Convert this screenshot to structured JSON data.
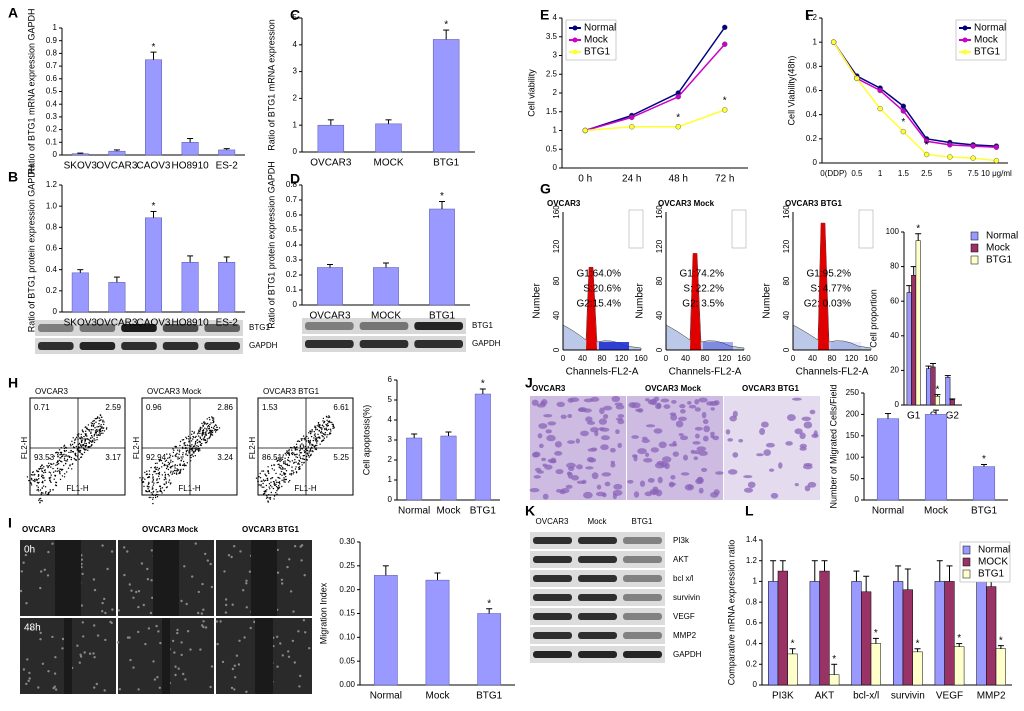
{
  "chart_data": [
    {
      "type": "bar",
      "categories": [
        "SKOV3",
        "OVCAR3",
        "CAOV3",
        "HO8910",
        "ES-2"
      ],
      "values": [
        0.01,
        0.03,
        0.75,
        0.1,
        0.04
      ],
      "errors": [
        0.005,
        0.01,
        0.06,
        0.03,
        0.01
      ],
      "color": "#9999ff",
      "ylabel": "Ratio of BTG1 mRNA expression GAPDH",
      "ylim": [
        0,
        1
      ],
      "yticks": [
        0,
        0.1,
        0.2,
        0.3,
        0.4,
        0.5,
        0.6,
        0.7,
        0.8,
        0.9,
        1
      ],
      "annotations": [
        {
          "text": "*",
          "index": 2
        }
      ]
    },
    {
      "type": "bar",
      "categories": [
        "SKOV3",
        "OVCAR3",
        "CAOV3",
        "HO8910",
        "ES-2"
      ],
      "values": [
        0.37,
        0.28,
        0.89,
        0.47,
        0.47
      ],
      "errors": [
        0.03,
        0.05,
        0.06,
        0.06,
        0.05
      ],
      "color": "#9999ff",
      "ylabel": "Ratio of BTG1 protein expression GAPDH",
      "ylim": [
        0,
        1.2
      ],
      "yticks": [
        0,
        0.2,
        0.4,
        0.6,
        0.8,
        {
          "value": 1,
          "label": "1.0"
        },
        1.2
      ],
      "annotations": [
        {
          "text": "*",
          "index": 2
        }
      ]
    },
    {
      "type": "bar",
      "categories": [
        "OVCAR3",
        "MOCK",
        "BTG1"
      ],
      "values": [
        1,
        1.05,
        4.2
      ],
      "errors": [
        0.2,
        0.15,
        0.35
      ],
      "color": "#9999ff",
      "ylabel": "Ratio of BTG1 mRNA expression",
      "ylim": [
        0,
        5
      ],
      "yticks": [
        0,
        1,
        2,
        3,
        4,
        5
      ],
      "annotations": [
        {
          "text": "*",
          "index": 2
        }
      ]
    },
    {
      "type": "bar",
      "categories": [
        "OVCAR3",
        "MOCK",
        "BTG1"
      ],
      "values": [
        0.25,
        0.25,
        0.64
      ],
      "errors": [
        0.02,
        0.03,
        0.05
      ],
      "color": "#9999ff",
      "ylabel": "Ratio of BTG1 protein expression GAPDH",
      "ylim": [
        0,
        0.8
      ],
      "yticks": [
        0,
        0.1,
        0.2,
        0.3,
        0.4,
        0.5,
        0.6,
        0.7,
        0.8
      ],
      "annotations": [
        {
          "text": "*",
          "index": 2
        }
      ]
    },
    {
      "type": "line",
      "categories": [
        "0 h",
        "24 h",
        "48 h",
        "72 h"
      ],
      "series": [
        {
          "name": "Normal",
          "color": "#000080",
          "values": [
            1,
            1.4,
            2.0,
            3.75
          ]
        },
        {
          "name": "Mock",
          "color": "#cc00cc",
          "values": [
            1,
            1.35,
            1.9,
            3.3
          ]
        },
        {
          "name": "BTG1",
          "color": "#ffff33",
          "values": [
            1,
            1.1,
            1.1,
            1.55
          ]
        }
      ],
      "ylabel": "Cell viability",
      "ylim": [
        0,
        4
      ],
      "yticks": [
        0,
        0.5,
        1,
        1.5,
        2,
        2.5,
        3,
        3.5,
        4
      ],
      "legend": "upper left",
      "annotations": [
        {
          "text": "*",
          "index": 2,
          "series": 2
        },
        {
          "text": "*",
          "index": 3,
          "series": 2
        }
      ]
    },
    {
      "type": "line",
      "categories": [
        "0(DDP)",
        "0.5",
        "1",
        "1.5",
        "2.5",
        "5",
        "7.5",
        "10 μg/ml"
      ],
      "series": [
        {
          "name": "Normal",
          "color": "#000080",
          "values": [
            1,
            0.72,
            0.62,
            0.47,
            0.2,
            0.17,
            0.15,
            0.14
          ]
        },
        {
          "name": "Mock",
          "color": "#cc00cc",
          "values": [
            1,
            0.7,
            0.6,
            0.43,
            0.18,
            0.15,
            0.14,
            0.13
          ]
        },
        {
          "name": "BTG1",
          "color": "#ffff33",
          "values": [
            1,
            0.7,
            0.45,
            0.26,
            0.07,
            0.05,
            0.04,
            0.02
          ]
        }
      ],
      "ylabel": "Cell Viability(48h)",
      "ylim": [
        0,
        1.2
      ],
      "yticks": [
        0,
        0.2,
        0.4,
        0.6,
        0.8,
        1,
        1.2
      ],
      "legend": "upper right",
      "annotations": [
        {
          "text": "*",
          "index": 3,
          "series": 2
        },
        {
          "text": "*",
          "index": 4,
          "series": 2
        }
      ]
    },
    {
      "type": "bar",
      "categories": [
        "G1",
        "S",
        "G2"
      ],
      "series": [
        {
          "name": "Normal",
          "color": "#9999ff",
          "values": [
            65,
            21,
            16
          ],
          "errors": [
            4,
            1.5,
            1
          ]
        },
        {
          "name": "Mock",
          "color": "#993366",
          "values": [
            75,
            22,
            3
          ],
          "errors": [
            5,
            2,
            0.5
          ]
        },
        {
          "name": "BTG1",
          "color": "#ffffcc",
          "values": [
            95,
            5,
            0
          ],
          "errors": [
            4,
            1,
            0
          ]
        }
      ],
      "ylabel": "Cell proportion",
      "ylim": [
        0,
        100
      ],
      "yticks": [
        0,
        20,
        40,
        60,
        80,
        100
      ],
      "legend": "upper right",
      "annotations": [
        {
          "text": "*",
          "index": 0,
          "series": 2
        },
        {
          "text": "*",
          "index": 1,
          "series": 2
        }
      ]
    },
    {
      "type": "bar",
      "categories": [
        "Normal",
        "Mock",
        "BTG1"
      ],
      "values": [
        3.1,
        3.2,
        5.3
      ],
      "errors": [
        0.2,
        0.2,
        0.25
      ],
      "color": "#9999ff",
      "ylabel": "Cell apoptosis(%)",
      "ylim": [
        0,
        6
      ],
      "yticks": [
        0,
        1,
        2,
        3,
        4,
        5,
        6
      ],
      "annotations": [
        {
          "text": "*",
          "index": 2
        }
      ]
    },
    {
      "type": "bar",
      "categories": [
        "Normal",
        "Mock",
        "BTG1"
      ],
      "values": [
        190,
        200,
        78
      ],
      "errors": [
        12,
        10,
        5
      ],
      "color": "#9999ff",
      "ylabel": "Number of Migrated Cells/Field",
      "ylim": [
        0,
        250
      ],
      "yticks": [
        0,
        50,
        100,
        150,
        200,
        250
      ],
      "annotations": [
        {
          "text": "*",
          "index": 2
        }
      ]
    },
    {
      "type": "bar",
      "categories": [
        "Normal",
        "Mock",
        "BTG1"
      ],
      "values": [
        0.23,
        0.22,
        0.15
      ],
      "errors": [
        0.02,
        0.015,
        0.01
      ],
      "color": "#9999ff",
      "ylabel": "Migration Index",
      "ylim": [
        0,
        0.3
      ],
      "yticks": [
        {
          "value": 0,
          "label": "0.00"
        },
        {
          "value": 0.05,
          "label": "0.05"
        },
        {
          "value": 0.1,
          "label": "0.10"
        },
        {
          "value": 0.15,
          "label": "0.15"
        },
        {
          "value": 0.2,
          "label": "0.20"
        },
        {
          "value": 0.25,
          "label": "0.25"
        },
        {
          "value": 0.3,
          "label": "0.30"
        }
      ],
      "annotations": [
        {
          "text": "*",
          "index": 2
        }
      ]
    },
    {
      "type": "bar",
      "categories": [
        "PI3K",
        "AKT",
        "bcl-x/l",
        "survivin",
        "VEGF",
        "MMP2"
      ],
      "series": [
        {
          "name": "Normal",
          "color": "#9999ff",
          "values": [
            1,
            1,
            1,
            1,
            1,
            1
          ],
          "errors": [
            0.2,
            0.2,
            0.1,
            0.15,
            0.2,
            0.2
          ]
        },
        {
          "name": "MOCK",
          "color": "#993366",
          "values": [
            1.1,
            1.1,
            0.9,
            0.92,
            1,
            0.95
          ],
          "errors": [
            0.1,
            0.1,
            0.15,
            0.2,
            0.15,
            0.1
          ]
        },
        {
          "name": "BTG1",
          "color": "#ffffcc",
          "values": [
            0.3,
            0.1,
            0.4,
            0.32,
            0.37,
            0.35
          ],
          "errors": [
            0.05,
            0.1,
            0.05,
            0.03,
            0.03,
            0.03
          ]
        }
      ],
      "ylabel": "Comparative mRNA expression ratio",
      "ylim": [
        0,
        1.4
      ],
      "yticks": [
        0,
        0.2,
        0.4,
        0.6,
        0.8,
        1,
        1.2,
        1.4
      ],
      "legend": "upper right",
      "annotations": [
        {
          "text": "*",
          "index": 0,
          "series": 2
        },
        {
          "text": "*",
          "index": 1,
          "series": 2
        },
        {
          "text": "*",
          "index": 2,
          "series": 2
        },
        {
          "text": "*",
          "index": 3,
          "series": 2
        },
        {
          "text": "*",
          "index": 4,
          "series": 2
        },
        {
          "text": "*",
          "index": 5,
          "series": 2
        }
      ]
    }
  ],
  "figure": {
    "panels": [
      "A",
      "B",
      "C",
      "D",
      "E",
      "F",
      "G",
      "H",
      "I",
      "J",
      "K",
      "L"
    ],
    "blot_b": [
      "BTG1",
      "GAPDH"
    ],
    "blot_d": [
      "BTG1",
      "GAPDH"
    ],
    "g": {
      "titles": [
        "OVCAR3",
        "OVCAR3 Mock",
        "OVCAR3 BTG1"
      ],
      "stats": [
        [
          "G1:64.0%",
          "S:20.6%",
          "G2:15.4%"
        ],
        [
          "G1:74.2%",
          "S: 22.2%",
          "G2: 3.5%"
        ],
        [
          "G1:95.2%",
          "S: 4.77%",
          "G2: 0.03%"
        ]
      ],
      "ylabel": "Number",
      "xlabel": "Channels-FL2-A",
      "xticks": [
        "0",
        "40",
        "80",
        "120",
        "160"
      ],
      "yticks": [
        "0",
        "40",
        "80",
        "120",
        "160"
      ]
    },
    "h": {
      "titles": [
        "OVCAR3",
        "OVCAR3 Mock",
        "OVCAR3 BTG1"
      ],
      "quadrants": [
        [
          "0.71",
          "2.59",
          "93.53",
          "3.17"
        ],
        [
          "0.96",
          "2.86",
          "92.94",
          "3.24"
        ],
        [
          "1.53",
          "6.61",
          "86.51",
          "5.25"
        ]
      ],
      "xlabel": "FL1-H",
      "ylabel": "FL2-H"
    },
    "j": {
      "titles": [
        "OVCAR3",
        "OVCAR3 Mock",
        "OVCAR3 BTG1"
      ]
    },
    "i": {
      "titles": [
        "OVCAR3",
        "OVCAR3 Mock",
        "OVCAR3 BTG1"
      ],
      "times": [
        "0h",
        "48h"
      ]
    },
    "k": {
      "columns": [
        "OVCAR3",
        "Mock",
        "BTG1"
      ],
      "rows": [
        "PI3k",
        "AKT",
        "bcl x/l",
        "survivin",
        "VEGF",
        "MMP2",
        "GAPDH"
      ]
    }
  }
}
